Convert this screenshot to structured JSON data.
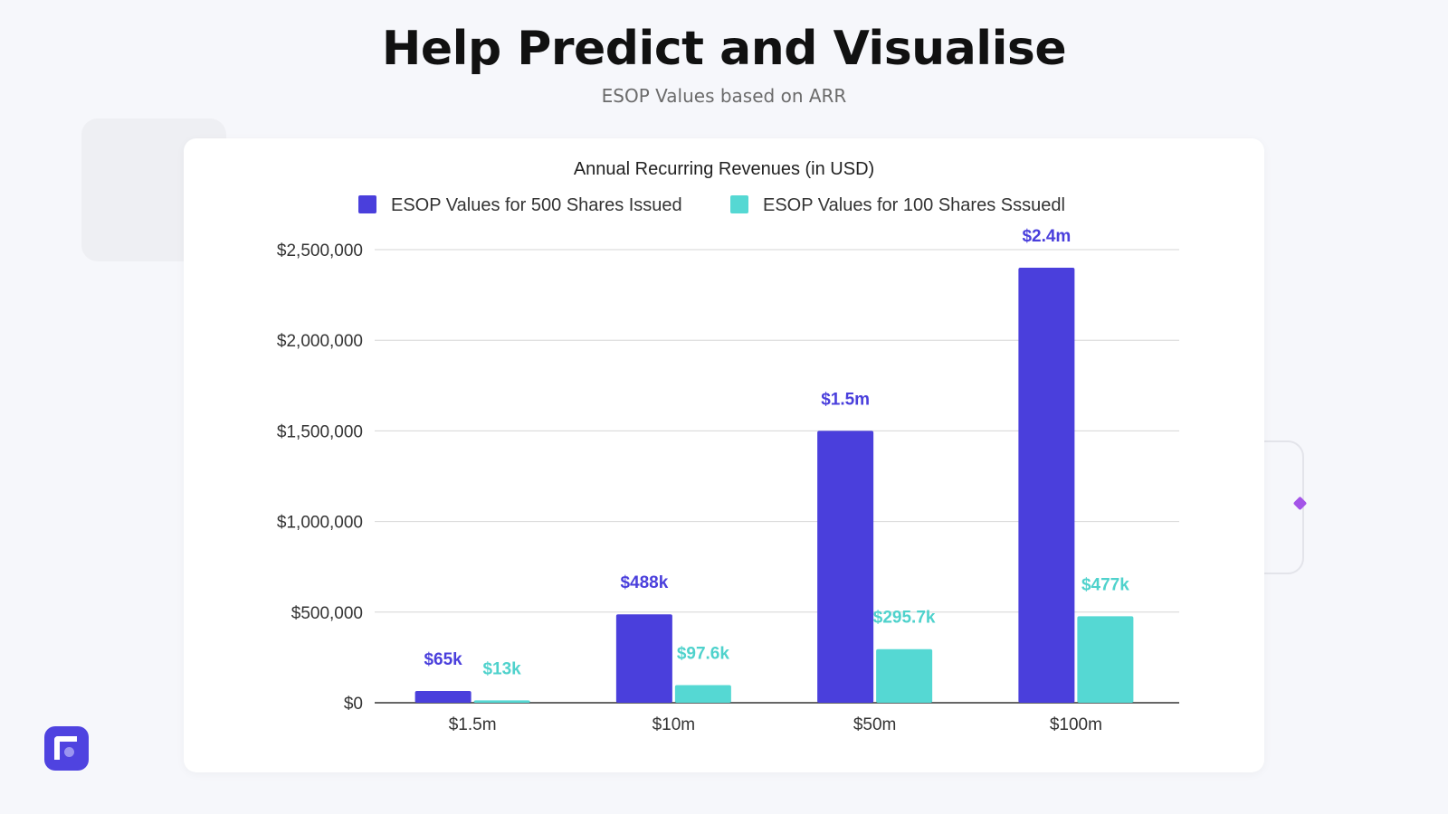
{
  "header": {
    "title": "Help Predict and Visualise",
    "subtitle": "ESOP Values based on ARR"
  },
  "colors": {
    "series_500": "#4a3fdc",
    "series_100": "#55d8d3",
    "logo": "#4f43e0",
    "accent_diamond": "#a454e8"
  },
  "logo": {
    "icon": "app-logo-icon"
  },
  "chart_data": {
    "type": "bar",
    "title": "Annual Recurring Revenues (in USD)",
    "xlabel": "",
    "ylabel": "",
    "categories": [
      "$1.5m",
      "$10m",
      "$50m",
      "$100m"
    ],
    "ylim": [
      0,
      2500000
    ],
    "yticks": [
      0,
      500000,
      1000000,
      1500000,
      2000000,
      2500000
    ],
    "ytick_labels": [
      "$0",
      "$500,000",
      "$1,000,000",
      "$1,500,000",
      "$2,000,000",
      "$2,500,000"
    ],
    "grid": true,
    "legend_position": "top",
    "series": [
      {
        "name": "ESOP Values for 500 Shares Issued",
        "values": [
          65000,
          488000,
          1500000,
          2400000
        ],
        "labels": [
          "$65k",
          "$488k",
          "$1.5m",
          "$2.4m"
        ]
      },
      {
        "name": "ESOP Values for 100 Shares Sssuedl",
        "values": [
          13000,
          97600,
          295700,
          477000
        ],
        "labels": [
          "$13k",
          "$97.6k",
          "$295.7k",
          "$477k"
        ]
      }
    ]
  }
}
